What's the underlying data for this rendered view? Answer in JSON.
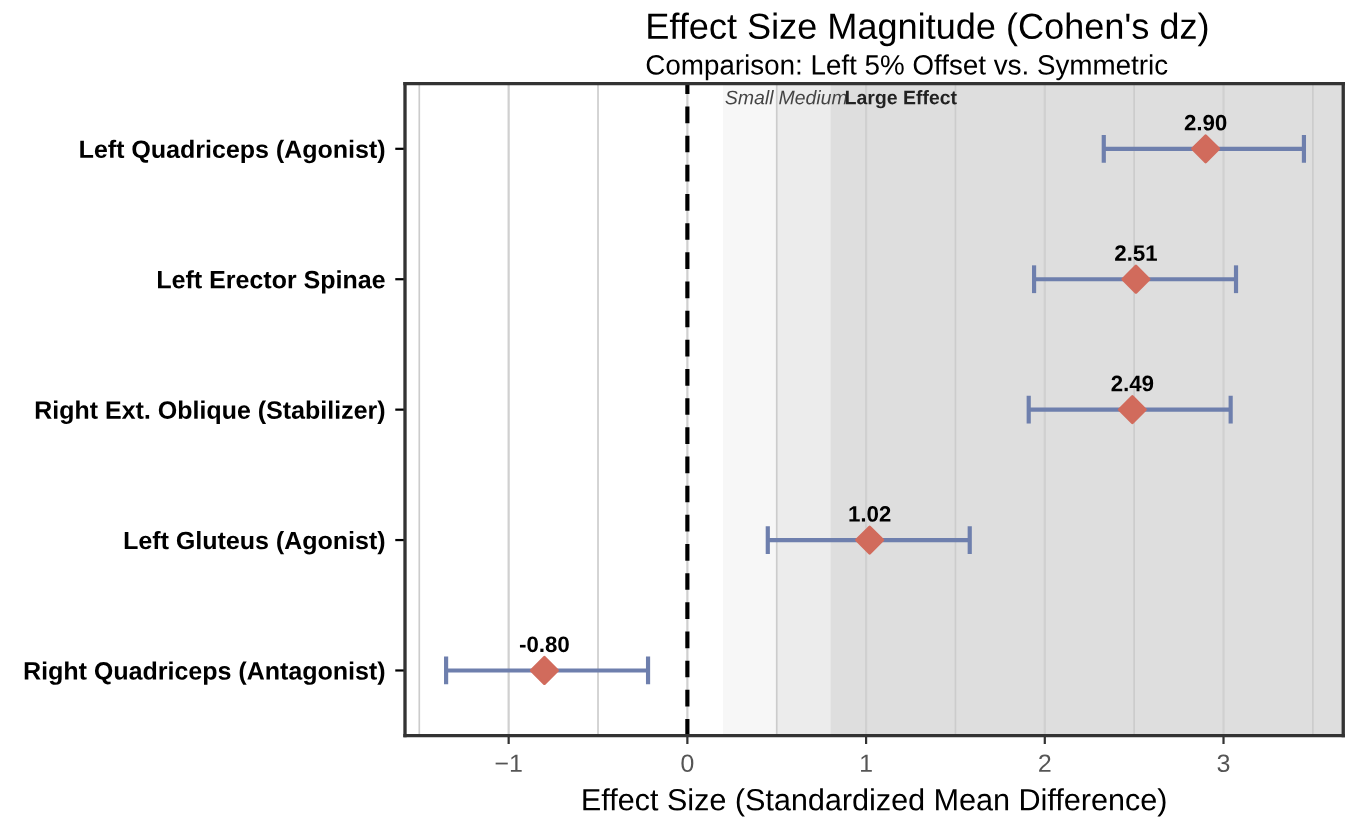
{
  "chart_data": {
    "type": "scatter",
    "orientation": "horizontal",
    "title": "Effect Size Magnitude (Cohen's dz)",
    "subtitle": "Comparison: Left 5% Offset vs. Symmetric",
    "xlabel": "Effect Size (Standardized Mean Difference)",
    "categories": [
      "Left Quadriceps (Agonist)",
      "Left Erector Spinae",
      "Right Ext. Oblique (Stabilizer)",
      "Left Gluteus (Agonist)",
      "Right Quadriceps (Antagonist)"
    ],
    "series": [
      {
        "color": "#d16b5c",
        "values": [
          2.9,
          2.51,
          2.49,
          1.02,
          -0.8
        ],
        "value_labels": [
          "2.90",
          "2.51",
          "2.49",
          "1.02",
          "-0.80"
        ],
        "errors": [
          [
            2.33,
            3.45
          ],
          [
            1.94,
            3.07
          ],
          [
            1.91,
            3.04
          ],
          [
            0.45,
            1.58
          ],
          [
            -1.35,
            -0.22
          ]
        ]
      }
    ],
    "marker": "diamond",
    "grid": "x",
    "legend": false,
    "xlim": [
      -1.58,
      3.67
    ],
    "xticks": [
      {
        "value": -1.5,
        "label": null
      },
      -1,
      {
        "value": -0.5,
        "label": null
      },
      0,
      {
        "value": 0.5,
        "label": null
      },
      1,
      {
        "value": 1.5,
        "label": null
      },
      2,
      {
        "value": 2.5,
        "label": null
      },
      3,
      {
        "value": 3.5,
        "label": null
      }
    ],
    "ref_lines": [
      {
        "axis": "x",
        "value": 0,
        "color": "#000000",
        "line_style": "dashed"
      }
    ],
    "bands": [
      {
        "axis": "x",
        "from": 0.2,
        "to": 0.5,
        "label": "Small",
        "color": "#f7f7f7"
      },
      {
        "axis": "x",
        "from": 0.5,
        "to": 0.8,
        "label": "Medium",
        "color": "#ececec"
      },
      {
        "axis": "x",
        "from": 0.8,
        "to": 3.67,
        "label": "Large Effect",
        "color": "#dedede"
      }
    ]
  }
}
